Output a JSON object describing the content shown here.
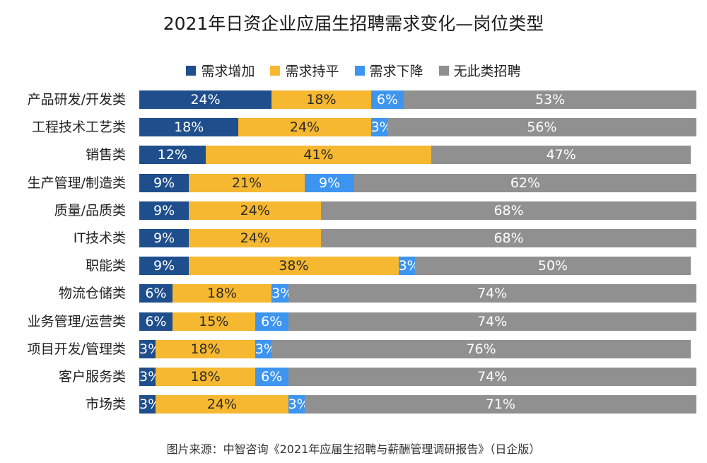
{
  "chart_data": {
    "type": "bar",
    "orientation": "horizontal",
    "stacked": true,
    "title": "2021年日资企业应届生招聘需求变化—岗位类型",
    "source": "图片来源：中智咨询《2021年应届生招聘与薪酬管理调研报告》（日企版）",
    "legend_position": "top",
    "unit": "%",
    "xlim": [
      0,
      100
    ],
    "categories": [
      "产品研发/开发类",
      "工程技术工艺类",
      "销售类",
      "生产管理/制造类",
      "质量/品质类",
      "IT技术类",
      "职能类",
      "物流仓储类",
      "业务管理/运营类",
      "项目开发/管理类",
      "客户服务类",
      "市场类"
    ],
    "series": [
      {
        "name": "需求增加",
        "color": "#1f4e8c",
        "values": [
          24,
          18,
          12,
          9,
          9,
          9,
          9,
          6,
          6,
          3,
          3,
          3
        ]
      },
      {
        "name": "需求持平",
        "color": "#f6b731",
        "values": [
          18,
          24,
          41,
          21,
          24,
          24,
          38,
          18,
          15,
          18,
          18,
          24
        ]
      },
      {
        "name": "需求下降",
        "color": "#3d95f0",
        "values": [
          6,
          3,
          0,
          9,
          0,
          0,
          3,
          3,
          6,
          3,
          6,
          3
        ]
      },
      {
        "name": "无此类招聘",
        "color": "#909090",
        "values": [
          53,
          56,
          47,
          62,
          68,
          68,
          50,
          74,
          74,
          76,
          74,
          71
        ]
      }
    ]
  }
}
